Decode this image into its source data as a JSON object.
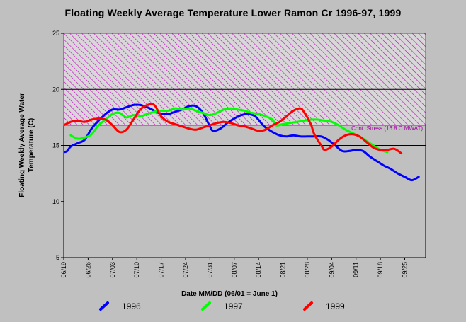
{
  "chart_data": {
    "type": "line",
    "title": "Floating Weekly Average Temperature Lower Ramon Cr 1996-97, 1999",
    "xlabel": "Date MM/DD (06/01 = June 1)",
    "ylabel_lines": [
      "Floating Weekly Average Water",
      "Temperature (C)"
    ],
    "x_tick_labels": [
      "06/19",
      "06/26",
      "07/03",
      "07/10",
      "07/17",
      "07/24",
      "07/31",
      "08/07",
      "08/14",
      "08/21",
      "08/28",
      "09/04",
      "09/11",
      "09/18",
      "09/25"
    ],
    "x_unit": "day of year",
    "x_ticks": [
      170,
      177,
      184,
      191,
      198,
      205,
      212,
      219,
      226,
      233,
      240,
      247,
      254,
      261,
      268
    ],
    "xlim": [
      170,
      274
    ],
    "y_ticks": [
      5,
      10,
      15,
      20,
      25
    ],
    "ylim": [
      5,
      25
    ],
    "grid_lines_y": [
      15,
      20
    ],
    "stress_band": {
      "y_min": 16.8,
      "y_max": 25,
      "label": "Cont. Stress (16.8 C MWAT)",
      "color": "#c000c0"
    },
    "series": [
      {
        "name": "1996",
        "color": "#0000ff",
        "points": [
          [
            170,
            14.4
          ],
          [
            171,
            14.5
          ],
          [
            172,
            14.9
          ],
          [
            174,
            15.2
          ],
          [
            176,
            15.5
          ],
          [
            178,
            16.5
          ],
          [
            180,
            17.2
          ],
          [
            182,
            17.8
          ],
          [
            184,
            18.2
          ],
          [
            186,
            18.2
          ],
          [
            188,
            18.4
          ],
          [
            190,
            18.6
          ],
          [
            192,
            18.6
          ],
          [
            194,
            18.4
          ],
          [
            196,
            18.1
          ],
          [
            198,
            17.8
          ],
          [
            200,
            17.8
          ],
          [
            202,
            18.0
          ],
          [
            204,
            18.2
          ],
          [
            206,
            18.5
          ],
          [
            208,
            18.5
          ],
          [
            210,
            17.9
          ],
          [
            212,
            16.7
          ],
          [
            213,
            16.3
          ],
          [
            215,
            16.5
          ],
          [
            217,
            17.0
          ],
          [
            219,
            17.4
          ],
          [
            221,
            17.7
          ],
          [
            223,
            17.8
          ],
          [
            225,
            17.6
          ],
          [
            227,
            16.9
          ],
          [
            228,
            16.6
          ],
          [
            230,
            16.2
          ],
          [
            232,
            15.9
          ],
          [
            234,
            15.8
          ],
          [
            236,
            15.9
          ],
          [
            238,
            15.8
          ],
          [
            240,
            15.8
          ],
          [
            242,
            15.8
          ],
          [
            244,
            15.8
          ],
          [
            246,
            15.5
          ],
          [
            248,
            15.0
          ],
          [
            250,
            14.5
          ],
          [
            252,
            14.5
          ],
          [
            254,
            14.6
          ],
          [
            256,
            14.5
          ],
          [
            258,
            14.0
          ],
          [
            260,
            13.6
          ],
          [
            262,
            13.2
          ],
          [
            264,
            12.9
          ],
          [
            266,
            12.5
          ],
          [
            268,
            12.2
          ],
          [
            270,
            11.9
          ],
          [
            272,
            12.2
          ]
        ]
      },
      {
        "name": "1997",
        "color": "#00ff00",
        "points": [
          [
            172,
            15.9
          ],
          [
            174,
            15.6
          ],
          [
            176,
            15.7
          ],
          [
            178,
            16.0
          ],
          [
            180,
            16.8
          ],
          [
            182,
            17.3
          ],
          [
            184,
            17.8
          ],
          [
            186,
            17.9
          ],
          [
            188,
            17.5
          ],
          [
            190,
            17.7
          ],
          [
            192,
            17.6
          ],
          [
            194,
            17.8
          ],
          [
            196,
            18.0
          ],
          [
            198,
            18.1
          ],
          [
            200,
            18.1
          ],
          [
            202,
            18.3
          ],
          [
            204,
            18.2
          ],
          [
            206,
            18.3
          ],
          [
            208,
            18.1
          ],
          [
            210,
            17.9
          ],
          [
            212,
            17.7
          ],
          [
            214,
            17.9
          ],
          [
            216,
            18.2
          ],
          [
            218,
            18.3
          ],
          [
            220,
            18.2
          ],
          [
            222,
            18.1
          ],
          [
            224,
            17.9
          ],
          [
            226,
            17.8
          ],
          [
            228,
            17.6
          ],
          [
            230,
            17.3
          ],
          [
            231,
            16.8
          ],
          [
            233,
            16.9
          ],
          [
            235,
            17.0
          ],
          [
            237,
            17.1
          ],
          [
            239,
            17.2
          ],
          [
            241,
            17.3
          ],
          [
            243,
            17.3
          ],
          [
            245,
            17.2
          ],
          [
            247,
            17.1
          ],
          [
            249,
            16.8
          ],
          [
            251,
            16.4
          ],
          [
            253,
            16.1
          ],
          [
            255,
            15.8
          ],
          [
            257,
            15.4
          ],
          [
            259,
            15.0
          ],
          [
            261,
            14.6
          ],
          [
            263,
            14.4
          ]
        ]
      },
      {
        "name": "1999",
        "color": "#ff0000",
        "points": [
          [
            170,
            16.8
          ],
          [
            172,
            17.1
          ],
          [
            174,
            17.2
          ],
          [
            176,
            17.1
          ],
          [
            178,
            17.3
          ],
          [
            180,
            17.4
          ],
          [
            182,
            17.3
          ],
          [
            184,
            16.8
          ],
          [
            186,
            16.2
          ],
          [
            188,
            16.4
          ],
          [
            190,
            17.3
          ],
          [
            192,
            18.2
          ],
          [
            194,
            18.6
          ],
          [
            196,
            18.6
          ],
          [
            198,
            17.6
          ],
          [
            200,
            17.1
          ],
          [
            202,
            16.9
          ],
          [
            204,
            16.7
          ],
          [
            206,
            16.5
          ],
          [
            208,
            16.4
          ],
          [
            210,
            16.6
          ],
          [
            212,
            16.8
          ],
          [
            214,
            17.0
          ],
          [
            216,
            17.1
          ],
          [
            218,
            17.0
          ],
          [
            220,
            16.8
          ],
          [
            222,
            16.7
          ],
          [
            224,
            16.5
          ],
          [
            226,
            16.3
          ],
          [
            228,
            16.4
          ],
          [
            230,
            16.8
          ],
          [
            232,
            17.1
          ],
          [
            234,
            17.6
          ],
          [
            236,
            18.1
          ],
          [
            238,
            18.3
          ],
          [
            239,
            18.0
          ],
          [
            241,
            16.9
          ],
          [
            242,
            16.0
          ],
          [
            244,
            15.0
          ],
          [
            245,
            14.6
          ],
          [
            247,
            14.9
          ],
          [
            249,
            15.5
          ],
          [
            251,
            15.9
          ],
          [
            253,
            16.0
          ],
          [
            255,
            15.8
          ],
          [
            257,
            15.3
          ],
          [
            259,
            14.8
          ],
          [
            261,
            14.6
          ],
          [
            263,
            14.6
          ],
          [
            265,
            14.7
          ],
          [
            267,
            14.3
          ]
        ]
      }
    ],
    "legend": {
      "placement": "bottom"
    }
  }
}
